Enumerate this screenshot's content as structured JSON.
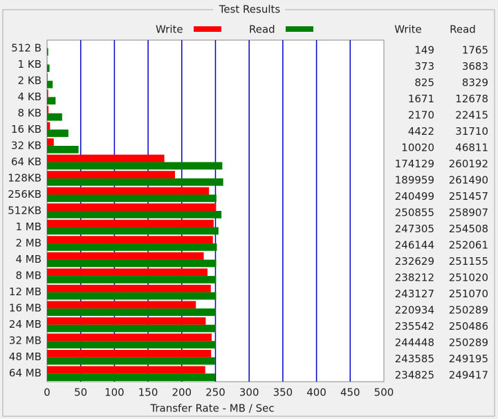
{
  "chart_data": {
    "type": "bar",
    "orientation": "horizontal",
    "title": "Test Results",
    "x_label": "Transfer Rate - MB / Sec",
    "categories": [
      "512 B",
      "1 KB",
      "2 KB",
      "4 KB",
      "8 KB",
      "16 KB",
      "32 KB",
      "64 KB",
      "128KB",
      "256KB",
      "512KB",
      "1 MB",
      "2 MB",
      "4 MB",
      "8 MB",
      "12 MB",
      "16 MB",
      "24 MB",
      "32 MB",
      "48 MB",
      "64 MB"
    ],
    "series": [
      {
        "name": "Write",
        "color": "#ff0000",
        "values": [
          0.149,
          0.373,
          0.825,
          1.671,
          2.17,
          4.422,
          10.02,
          174.129,
          189.959,
          240.499,
          250.855,
          247.305,
          246.144,
          232.629,
          238.212,
          243.127,
          220.934,
          235.542,
          244.448,
          243.585,
          234.825
        ],
        "value_labels": [
          "149",
          "373",
          "825",
          "1671",
          "2170",
          "4422",
          "10020",
          "174129",
          "189959",
          "240499",
          "250855",
          "247305",
          "246144",
          "232629",
          "238212",
          "243127",
          "220934",
          "235542",
          "244448",
          "243585",
          "234825"
        ]
      },
      {
        "name": "Read",
        "color": "#008000",
        "values": [
          1.765,
          3.683,
          8.329,
          12.678,
          22.415,
          31.71,
          46.811,
          260.192,
          261.49,
          251.457,
          258.907,
          254.508,
          252.061,
          251.155,
          251.02,
          251.07,
          250.289,
          250.486,
          250.289,
          249.195,
          249.417
        ],
        "value_labels": [
          "1765",
          "3683",
          "8329",
          "12678",
          "22415",
          "31710",
          "46811",
          "260192",
          "261490",
          "251457",
          "258907",
          "254508",
          "252061",
          "251155",
          "251020",
          "251070",
          "250289",
          "250486",
          "250289",
          "249195",
          "249417"
        ]
      }
    ],
    "xlim": [
      0,
      500
    ],
    "xticks": [
      0,
      50,
      100,
      150,
      200,
      250,
      300,
      350,
      400,
      450,
      500
    ],
    "grid": true
  }
}
